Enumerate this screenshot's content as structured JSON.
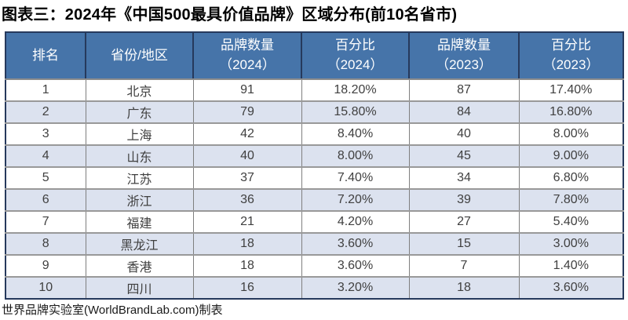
{
  "title": "图表三：2024年《中国500最具价值品牌》区域分布(前10名省市)",
  "footer": "世界品牌实验室(WorldBrandLab.com)制表",
  "colors": {
    "header_bg": "#4674a9",
    "header_text": "#ffffff",
    "stripe_bg": "#dce2ef",
    "outer_border": "#26395c",
    "grid_line": "#7f7f7f",
    "cell_text": "#404040"
  },
  "table": {
    "headers": [
      {
        "line1": "排名",
        "line2": ""
      },
      {
        "line1": "省份/地区",
        "line2": ""
      },
      {
        "line1": "品牌数量",
        "line2": "（2024）"
      },
      {
        "line1": "百分比",
        "line2": "（2024）"
      },
      {
        "line1": "品牌数量",
        "line2": "（2023）"
      },
      {
        "line1": "百分比",
        "line2": "（2023）"
      }
    ],
    "rows": [
      [
        "1",
        "北京",
        "91",
        "18.20%",
        "87",
        "17.40%"
      ],
      [
        "2",
        "广东",
        "79",
        "15.80%",
        "84",
        "16.80%"
      ],
      [
        "3",
        "上海",
        "42",
        "8.40%",
        "40",
        "8.00%"
      ],
      [
        "4",
        "山东",
        "40",
        "8.00%",
        "45",
        "9.00%"
      ],
      [
        "5",
        "江苏",
        "37",
        "7.40%",
        "34",
        "6.80%"
      ],
      [
        "6",
        "浙江",
        "36",
        "7.20%",
        "39",
        "7.80%"
      ],
      [
        "7",
        "福建",
        "21",
        "4.20%",
        "27",
        "5.40%"
      ],
      [
        "8",
        "黑龙江",
        "18",
        "3.60%",
        "15",
        "3.00%"
      ],
      [
        "9",
        "香港",
        "18",
        "3.60%",
        "7",
        "1.40%"
      ],
      [
        "10",
        "四川",
        "16",
        "3.20%",
        "18",
        "3.60%"
      ]
    ]
  },
  "chart_data": {
    "type": "table",
    "title": "图表三：2024年《中国500最具价值品牌》区域分布(前10名省市)",
    "columns": [
      "排名",
      "省份/地区",
      "品牌数量（2024）",
      "百分比（2024）",
      "品牌数量（2023）",
      "百分比（2023）"
    ],
    "rows": [
      [
        1,
        "北京",
        91,
        "18.20%",
        87,
        "17.40%"
      ],
      [
        2,
        "广东",
        79,
        "15.80%",
        84,
        "16.80%"
      ],
      [
        3,
        "上海",
        42,
        "8.40%",
        40,
        "8.00%"
      ],
      [
        4,
        "山东",
        40,
        "8.00%",
        45,
        "9.00%"
      ],
      [
        5,
        "江苏",
        37,
        "7.40%",
        34,
        "6.80%"
      ],
      [
        6,
        "浙江",
        36,
        "7.20%",
        39,
        "7.80%"
      ],
      [
        7,
        "福建",
        21,
        "4.20%",
        27,
        "5.40%"
      ],
      [
        8,
        "黑龙江",
        18,
        "3.60%",
        15,
        "3.00%"
      ],
      [
        9,
        "香港",
        18,
        "3.60%",
        7,
        "1.40%"
      ],
      [
        10,
        "四川",
        16,
        "3.20%",
        18,
        "3.60%"
      ]
    ],
    "source_note": "世界品牌实验室(WorldBrandLab.com)制表"
  }
}
